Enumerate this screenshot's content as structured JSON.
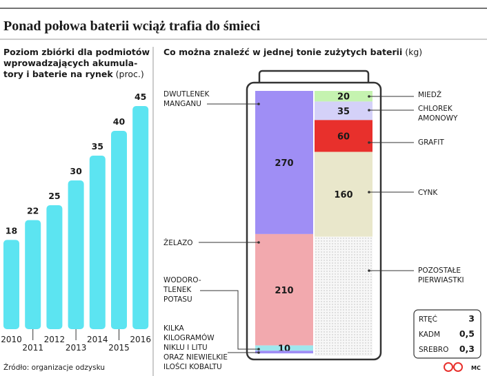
{
  "header": {
    "title": "Ponad połowa baterii wciąż trafia do śmieci"
  },
  "chart_data": [
    {
      "type": "bar",
      "title": [
        "Poziom zbiórki dla podmiotów",
        "wprowadzających akumula-",
        "tory i baterie na rynek"
      ],
      "unit": "(proc.)",
      "categories": [
        "2010",
        "2011",
        "2012",
        "2013",
        "2014",
        "2015",
        "2016"
      ],
      "values": [
        18,
        22,
        25,
        30,
        35,
        40,
        45
      ],
      "color": "#5ce4f1"
    },
    {
      "type": "battery",
      "title": "Co można znaleźć w jednej tonie zużytych baterii",
      "unit": "(kg)",
      "columns": [
        {
          "segments": [
            {
              "name": [
                "DWUTLENEK",
                "MANGANU"
              ],
              "value": 270,
              "color": "#9f8ef5"
            },
            {
              "name": [
                "ŻELAZO"
              ],
              "value": 210,
              "color": "#f2a9ae"
            },
            {
              "name": [
                "WODORO-",
                "TLENEK",
                "POTASU"
              ],
              "value": 10,
              "color": "#9fe7ee"
            },
            {
              "name": [
                "KILKA",
                "KILOGRAMÓW",
                "NIKLU I LITU",
                "ORAZ NIEWIELKIE",
                "ILOŚCI KOBALTU"
              ],
              "value": 5,
              "color": "#9f8ef5",
              "label_value": false
            }
          ]
        },
        {
          "segments": [
            {
              "name": [
                "MIEDŹ"
              ],
              "value": 20,
              "color": "#c5f3b0"
            },
            {
              "name": [
                "CHLOREK",
                "AMONOWY"
              ],
              "value": 35,
              "color": "#d4d1f8"
            },
            {
              "name": [
                "GRAFIT"
              ],
              "value": 60,
              "color": "#e8302c"
            },
            {
              "name": [
                "CYNK"
              ],
              "value": 160,
              "color": "#e9e7cb"
            },
            {
              "name": [
                "POZOSTAŁE",
                "PIERWIASTKI"
              ],
              "value": 225,
              "color": "#f6f6f6",
              "pattern": "dotted",
              "label_value": false
            }
          ]
        }
      ],
      "table": [
        {
          "name": "RTĘĆ",
          "value": 3
        },
        {
          "name": "KADM",
          "value": 0.5,
          "value_label": "0,5"
        },
        {
          "name": "SREBRO",
          "value": 0.3,
          "value_label": "0,3"
        }
      ]
    }
  ],
  "footer": {
    "source": "Źródło: organizacje odzysku",
    "credit": "MC"
  }
}
